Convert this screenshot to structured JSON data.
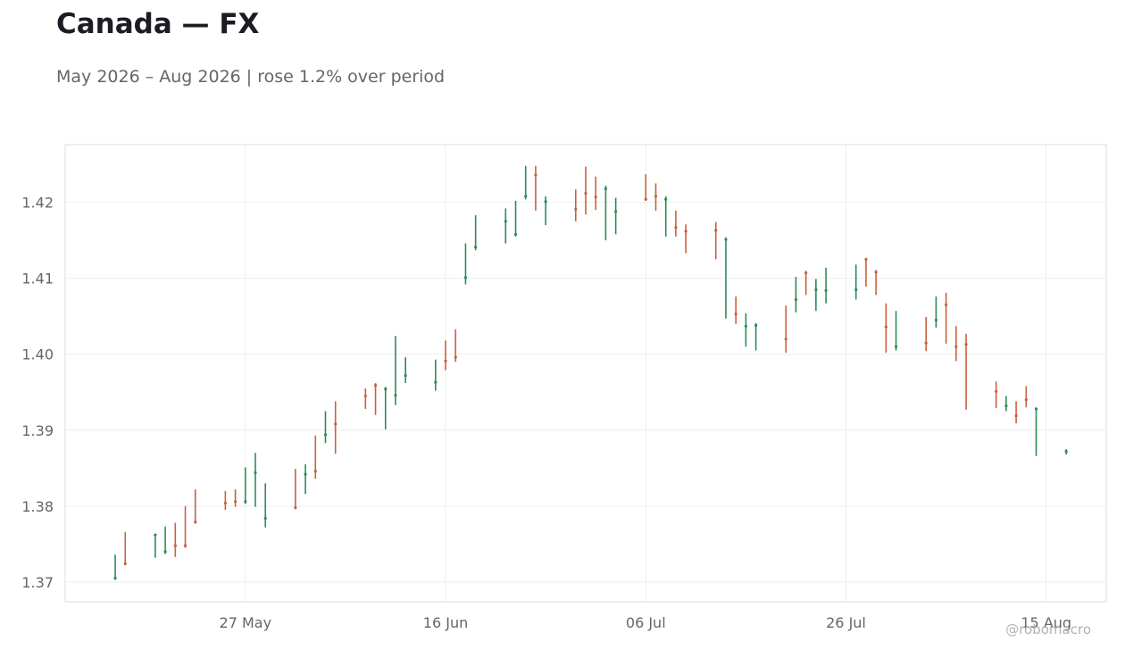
{
  "title": "Canada — FX",
  "subtitle": "May 2026 – Aug 2026 | rose 1.2% over period",
  "credit": "@robomacro",
  "colors": {
    "up": "#2e8b57",
    "down": "#c8613f",
    "grid": "#eeeeee",
    "frame": "#dddddd",
    "tick_text": "#65656b"
  },
  "chart_data": {
    "type": "ohlc",
    "title": "Canada — FX",
    "subtitle": "May 2026 – Aug 2026 | rose 1.2% over period",
    "xlabel": "",
    "ylabel": "",
    "ylim": [
      1.3674,
      1.4276
    ],
    "xlim": [
      "2026-05-09",
      "2026-08-21"
    ],
    "grid": true,
    "y_ticks": [
      1.37,
      1.38,
      1.39,
      1.4,
      1.41,
      1.42
    ],
    "y_tick_labels": [
      "1.37",
      "1.38",
      "1.39",
      "1.40",
      "1.41",
      "1.42"
    ],
    "x_ticks": [
      "2026-05-27",
      "2026-06-16",
      "2026-07-06",
      "2026-07-26",
      "2026-08-15"
    ],
    "x_tick_labels": [
      "27 May",
      "16 Jun",
      "06 Jul",
      "26 Jul",
      "15 Aug"
    ],
    "bars": [
      {
        "date": "2026-05-14",
        "high": 1.3736,
        "low": 1.3703,
        "close": 1.3705,
        "dir": "up"
      },
      {
        "date": "2026-05-15",
        "high": 1.3766,
        "low": 1.3723,
        "close": 1.3724,
        "dir": "down"
      },
      {
        "date": "2026-05-18",
        "high": 1.3763,
        "low": 1.3732,
        "close": 1.3762,
        "dir": "up"
      },
      {
        "date": "2026-05-19",
        "high": 1.3773,
        "low": 1.3737,
        "close": 1.374,
        "dir": "up"
      },
      {
        "date": "2026-05-20",
        "high": 1.3778,
        "low": 1.3733,
        "close": 1.3748,
        "dir": "down"
      },
      {
        "date": "2026-05-21",
        "high": 1.38,
        "low": 1.3745,
        "close": 1.3748,
        "dir": "down"
      },
      {
        "date": "2026-05-22",
        "high": 1.3822,
        "low": 1.3777,
        "close": 1.3779,
        "dir": "down"
      },
      {
        "date": "2026-05-25",
        "high": 1.382,
        "low": 1.3795,
        "close": 1.3804,
        "dir": "down"
      },
      {
        "date": "2026-05-26",
        "high": 1.3822,
        "low": 1.3799,
        "close": 1.3806,
        "dir": "down"
      },
      {
        "date": "2026-05-27",
        "high": 1.3851,
        "low": 1.3803,
        "close": 1.3806,
        "dir": "up"
      },
      {
        "date": "2026-05-28",
        "high": 1.387,
        "low": 1.3799,
        "close": 1.3844,
        "dir": "up"
      },
      {
        "date": "2026-05-29",
        "high": 1.383,
        "low": 1.3772,
        "close": 1.3784,
        "dir": "up"
      },
      {
        "date": "2026-06-01",
        "high": 1.3849,
        "low": 1.3796,
        "close": 1.3798,
        "dir": "down"
      },
      {
        "date": "2026-06-02",
        "high": 1.3855,
        "low": 1.3816,
        "close": 1.3842,
        "dir": "up"
      },
      {
        "date": "2026-06-03",
        "high": 1.3893,
        "low": 1.3836,
        "close": 1.3846,
        "dir": "down"
      },
      {
        "date": "2026-06-04",
        "high": 1.3925,
        "low": 1.3883,
        "close": 1.3894,
        "dir": "up"
      },
      {
        "date": "2026-06-05",
        "high": 1.3938,
        "low": 1.3869,
        "close": 1.3908,
        "dir": "down"
      },
      {
        "date": "2026-06-08",
        "high": 1.3955,
        "low": 1.3928,
        "close": 1.3945,
        "dir": "down"
      },
      {
        "date": "2026-06-09",
        "high": 1.3962,
        "low": 1.392,
        "close": 1.3959,
        "dir": "down"
      },
      {
        "date": "2026-06-10",
        "high": 1.3957,
        "low": 1.3901,
        "close": 1.3954,
        "dir": "up"
      },
      {
        "date": "2026-06-11",
        "high": 1.4024,
        "low": 1.3933,
        "close": 1.3946,
        "dir": "up"
      },
      {
        "date": "2026-06-12",
        "high": 1.3996,
        "low": 1.3962,
        "close": 1.3972,
        "dir": "up"
      },
      {
        "date": "2026-06-15",
        "high": 1.3993,
        "low": 1.3952,
        "close": 1.3963,
        "dir": "up"
      },
      {
        "date": "2026-06-16",
        "high": 1.4018,
        "low": 1.3979,
        "close": 1.3991,
        "dir": "down"
      },
      {
        "date": "2026-06-17",
        "high": 1.4033,
        "low": 1.399,
        "close": 1.3996,
        "dir": "down"
      },
      {
        "date": "2026-06-18",
        "high": 1.4146,
        "low": 1.4092,
        "close": 1.4101,
        "dir": "up"
      },
      {
        "date": "2026-06-19",
        "high": 1.4183,
        "low": 1.4137,
        "close": 1.4141,
        "dir": "up"
      },
      {
        "date": "2026-06-22",
        "high": 1.4192,
        "low": 1.4146,
        "close": 1.4175,
        "dir": "up"
      },
      {
        "date": "2026-06-23",
        "high": 1.4202,
        "low": 1.4155,
        "close": 1.4158,
        "dir": "up"
      },
      {
        "date": "2026-06-24",
        "high": 1.4248,
        "low": 1.4204,
        "close": 1.4208,
        "dir": "up"
      },
      {
        "date": "2026-06-25",
        "high": 1.4248,
        "low": 1.4189,
        "close": 1.4236,
        "dir": "down"
      },
      {
        "date": "2026-06-26",
        "high": 1.4208,
        "low": 1.417,
        "close": 1.4201,
        "dir": "up"
      },
      {
        "date": "2026-06-29",
        "high": 1.4217,
        "low": 1.4175,
        "close": 1.4191,
        "dir": "down"
      },
      {
        "date": "2026-06-30",
        "high": 1.4247,
        "low": 1.4184,
        "close": 1.4212,
        "dir": "down"
      },
      {
        "date": "2026-07-01",
        "high": 1.4234,
        "low": 1.419,
        "close": 1.4207,
        "dir": "down"
      },
      {
        "date": "2026-07-02",
        "high": 1.4222,
        "low": 1.415,
        "close": 1.4218,
        "dir": "up"
      },
      {
        "date": "2026-07-03",
        "high": 1.4206,
        "low": 1.4158,
        "close": 1.4188,
        "dir": "up"
      },
      {
        "date": "2026-07-06",
        "high": 1.4237,
        "low": 1.4202,
        "close": 1.4204,
        "dir": "down"
      },
      {
        "date": "2026-07-07",
        "high": 1.4225,
        "low": 1.4189,
        "close": 1.4208,
        "dir": "down"
      },
      {
        "date": "2026-07-08",
        "high": 1.4208,
        "low": 1.4155,
        "close": 1.4204,
        "dir": "up"
      },
      {
        "date": "2026-07-09",
        "high": 1.4189,
        "low": 1.4155,
        "close": 1.4167,
        "dir": "down"
      },
      {
        "date": "2026-07-10",
        "high": 1.4171,
        "low": 1.4133,
        "close": 1.4162,
        "dir": "down"
      },
      {
        "date": "2026-07-13",
        "high": 1.4174,
        "low": 1.4125,
        "close": 1.4163,
        "dir": "down"
      },
      {
        "date": "2026-07-14",
        "high": 1.4154,
        "low": 1.4047,
        "close": 1.4151,
        "dir": "up"
      },
      {
        "date": "2026-07-15",
        "high": 1.4076,
        "low": 1.404,
        "close": 1.4053,
        "dir": "down"
      },
      {
        "date": "2026-07-16",
        "high": 1.4054,
        "low": 1.401,
        "close": 1.4037,
        "dir": "up"
      },
      {
        "date": "2026-07-17",
        "high": 1.4041,
        "low": 1.4005,
        "close": 1.4038,
        "dir": "up"
      },
      {
        "date": "2026-07-20",
        "high": 1.4064,
        "low": 1.4002,
        "close": 1.402,
        "dir": "down"
      },
      {
        "date": "2026-07-21",
        "high": 1.4102,
        "low": 1.4055,
        "close": 1.4072,
        "dir": "up"
      },
      {
        "date": "2026-07-22",
        "high": 1.411,
        "low": 1.4078,
        "close": 1.4107,
        "dir": "down"
      },
      {
        "date": "2026-07-23",
        "high": 1.4099,
        "low": 1.4057,
        "close": 1.4085,
        "dir": "up"
      },
      {
        "date": "2026-07-24",
        "high": 1.4114,
        "low": 1.4067,
        "close": 1.4084,
        "dir": "up"
      },
      {
        "date": "2026-07-27",
        "high": 1.4118,
        "low": 1.4072,
        "close": 1.4085,
        "dir": "up"
      },
      {
        "date": "2026-07-28",
        "high": 1.4127,
        "low": 1.4089,
        "close": 1.4125,
        "dir": "down"
      },
      {
        "date": "2026-07-29",
        "high": 1.4111,
        "low": 1.4078,
        "close": 1.4108,
        "dir": "down"
      },
      {
        "date": "2026-07-30",
        "high": 1.4067,
        "low": 1.4002,
        "close": 1.4036,
        "dir": "down"
      },
      {
        "date": "2026-07-31",
        "high": 1.4057,
        "low": 1.4005,
        "close": 1.401,
        "dir": "up"
      },
      {
        "date": "2026-08-03",
        "high": 1.4049,
        "low": 1.4004,
        "close": 1.4015,
        "dir": "down"
      },
      {
        "date": "2026-08-04",
        "high": 1.4076,
        "low": 1.4035,
        "close": 1.4045,
        "dir": "up"
      },
      {
        "date": "2026-08-05",
        "high": 1.4081,
        "low": 1.4014,
        "close": 1.4065,
        "dir": "down"
      },
      {
        "date": "2026-08-06",
        "high": 1.4037,
        "low": 1.3991,
        "close": 1.401,
        "dir": "down"
      },
      {
        "date": "2026-08-07",
        "high": 1.4027,
        "low": 1.3927,
        "close": 1.4013,
        "dir": "down"
      },
      {
        "date": "2026-08-10",
        "high": 1.3964,
        "low": 1.3929,
        "close": 1.3951,
        "dir": "down"
      },
      {
        "date": "2026-08-11",
        "high": 1.3945,
        "low": 1.3925,
        "close": 1.3932,
        "dir": "up"
      },
      {
        "date": "2026-08-12",
        "high": 1.3938,
        "low": 1.3909,
        "close": 1.3919,
        "dir": "down"
      },
      {
        "date": "2026-08-13",
        "high": 1.3958,
        "low": 1.393,
        "close": 1.394,
        "dir": "down"
      },
      {
        "date": "2026-08-14",
        "high": 1.393,
        "low": 1.3866,
        "close": 1.3928,
        "dir": "up"
      },
      {
        "date": "2026-08-17",
        "high": 1.3875,
        "low": 1.3868,
        "close": 1.3872,
        "dir": "up"
      }
    ]
  }
}
